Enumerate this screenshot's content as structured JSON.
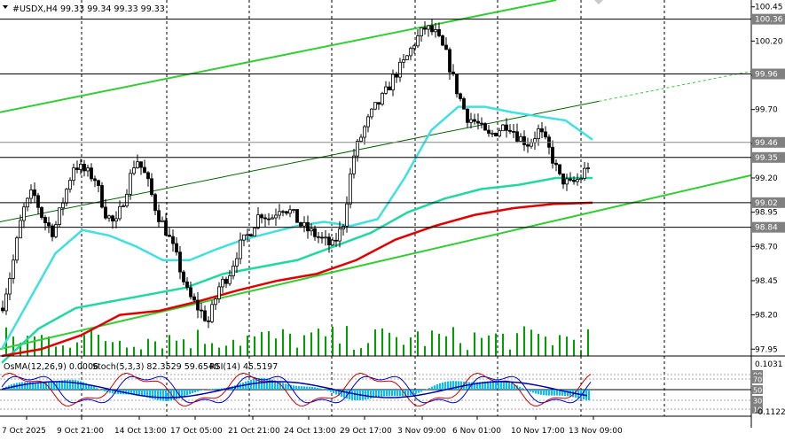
{
  "header": {
    "symbol": "#USDX,H4",
    "ohlc": "99.33 99.34 99.33 99.33"
  },
  "indicator_header": {
    "osma": "OsMA(12,26,9) 0.0006",
    "stoch": "Stoch(5,3,3) 82.3529 59.6540",
    "rsi": "RSI(14) 45.5197"
  },
  "colors": {
    "background": "#ffffff",
    "grid": "#000000",
    "candle": "#000000",
    "volume": "#00a000",
    "channel": "#32cd32",
    "ma_fast": "#40e0e0",
    "ma_mid": "#20d8a0",
    "ma_slow": "#e00000",
    "osma_bar": "#00bfff",
    "stoch_main": "#0000cc",
    "stoch_signal": "#cc0000",
    "price_label_bg": "#808080",
    "price_label_fg": "#ffffff"
  },
  "chart_data": {
    "type": "candlestick",
    "y_range": [
      97.9,
      100.5
    ],
    "y_ticks": [
      "100.45",
      "100.20",
      "99.95",
      "99.70",
      "99.45",
      "99.20",
      "98.95",
      "98.70",
      "98.45",
      "98.20",
      "97.95"
    ],
    "price_labels": [
      "100.36",
      "99.96",
      "99.46",
      "99.35",
      "99.02",
      "98.84"
    ],
    "x_labels": [
      "7 Oct 2025",
      "9 Oct 21:00",
      "14 Oct 13:00",
      "17 Oct 05:00",
      "21 Oct 21:00",
      "24 Oct 13:00",
      "29 Oct 17:00",
      "3 Nov 09:00",
      "6 Nov 01:00",
      "10 Nov 17:00",
      "13 Nov 09:00"
    ],
    "osma_ticks": [
      "0.1031",
      "-0.1122"
    ],
    "oscillator_levels": [
      "90",
      "70",
      "50",
      "30",
      "10"
    ],
    "close_path": [
      98.25,
      98.55,
      98.95,
      99.1,
      98.9,
      98.8,
      99.05,
      99.3,
      99.25,
      99.2,
      98.95,
      98.85,
      99.1,
      99.35,
      99.2,
      98.95,
      98.8,
      98.6,
      98.35,
      98.25,
      98.15,
      98.4,
      98.5,
      98.7,
      98.8,
      98.95,
      98.9,
      99.0,
      98.95,
      98.85,
      98.8,
      98.75,
      98.7,
      98.85,
      99.35,
      99.55,
      99.7,
      99.8,
      99.95,
      100.05,
      100.2,
      100.3,
      100.25,
      100.1,
      99.85,
      99.65,
      99.6,
      99.5,
      99.55,
      99.6,
      99.5,
      99.45,
      99.55,
      99.4,
      99.2,
      99.15,
      99.2,
      99.33
    ],
    "ma_fast": [
      97.95,
      98.3,
      98.65,
      98.82,
      98.78,
      98.7,
      98.6,
      98.6,
      98.68,
      98.75,
      98.8,
      98.85,
      98.88,
      98.85,
      98.9,
      99.2,
      99.55,
      99.72,
      99.72,
      99.68,
      99.65,
      99.62,
      99.48
    ],
    "ma_mid": [
      97.85,
      98.1,
      98.25,
      98.3,
      98.35,
      98.4,
      98.5,
      98.55,
      98.6,
      98.7,
      98.8,
      98.95,
      99.05,
      99.12,
      99.15,
      99.2,
      99.2
    ],
    "ma_slow": [
      97.9,
      97.95,
      98.05,
      98.2,
      98.23,
      98.3,
      98.38,
      98.45,
      98.5,
      98.6,
      98.75,
      98.85,
      98.93,
      98.98,
      99.01,
      99.02
    ]
  }
}
